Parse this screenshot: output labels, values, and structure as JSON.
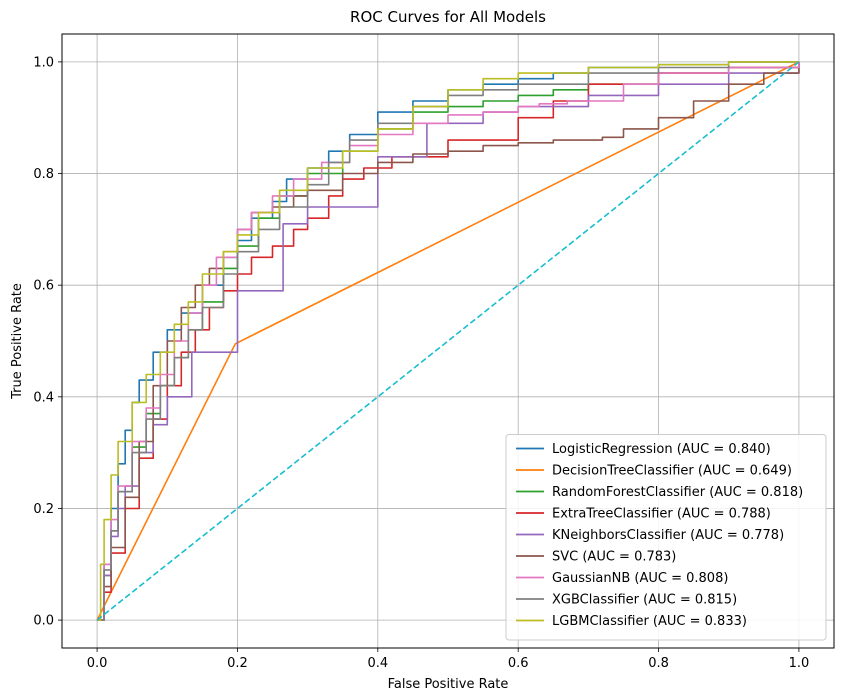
{
  "chart_data": {
    "type": "line",
    "title": "ROC Curves for All Models",
    "xlabel": "False Positive Rate",
    "ylabel": "True Positive Rate",
    "xlim": [
      -0.05,
      1.05
    ],
    "ylim": [
      -0.05,
      1.05
    ],
    "xticks": [
      "0.0",
      "0.2",
      "0.4",
      "0.6",
      "0.8",
      "1.0"
    ],
    "yticks": [
      "0.0",
      "0.2",
      "0.4",
      "0.6",
      "0.8",
      "1.0"
    ],
    "grid": true,
    "legend_position": "lower-right",
    "series": [
      {
        "name": "LogisticRegression (AUC = 0.840)",
        "color": "#1f77b4",
        "style": "solid",
        "x": [
          0,
          0.01,
          0.02,
          0.03,
          0.04,
          0.05,
          0.06,
          0.08,
          0.1,
          0.12,
          0.15,
          0.18,
          0.2,
          0.22,
          0.25,
          0.27,
          0.3,
          0.33,
          0.36,
          0.4,
          0.45,
          0.5,
          0.55,
          0.6,
          0.65,
          0.7,
          0.8,
          0.9,
          1.0
        ],
        "y": [
          0,
          0.1,
          0.2,
          0.28,
          0.34,
          0.39,
          0.43,
          0.48,
          0.52,
          0.55,
          0.6,
          0.65,
          0.68,
          0.72,
          0.75,
          0.79,
          0.81,
          0.84,
          0.87,
          0.91,
          0.93,
          0.95,
          0.96,
          0.97,
          0.98,
          0.99,
          0.995,
          1.0,
          1.0
        ]
      },
      {
        "name": "DecisionTreeClassifier (AUC = 0.649)",
        "color": "#ff7f0e",
        "style": "solid",
        "x": [
          0,
          0.197,
          1.0
        ],
        "y": [
          0,
          0.495,
          1.0
        ]
      },
      {
        "name": "RandomForestClassifier (AUC = 0.818)",
        "color": "#2ca02c",
        "style": "solid",
        "x": [
          0,
          0.01,
          0.02,
          0.03,
          0.05,
          0.07,
          0.09,
          0.11,
          0.13,
          0.15,
          0.18,
          0.2,
          0.23,
          0.26,
          0.3,
          0.35,
          0.4,
          0.45,
          0.5,
          0.55,
          0.6,
          0.65,
          0.7,
          0.8,
          0.9,
          1.0
        ],
        "y": [
          0,
          0.08,
          0.16,
          0.23,
          0.31,
          0.37,
          0.42,
          0.47,
          0.52,
          0.57,
          0.63,
          0.67,
          0.72,
          0.76,
          0.8,
          0.84,
          0.88,
          0.91,
          0.92,
          0.93,
          0.94,
          0.95,
          0.96,
          0.98,
          0.99,
          1.0
        ]
      },
      {
        "name": "ExtraTreeClassifier (AUC = 0.788)",
        "color": "#d62728",
        "style": "solid",
        "x": [
          0,
          0.01,
          0.02,
          0.04,
          0.06,
          0.08,
          0.1,
          0.12,
          0.14,
          0.16,
          0.18,
          0.2,
          0.22,
          0.25,
          0.28,
          0.3,
          0.33,
          0.35,
          0.38,
          0.42,
          0.5,
          0.6,
          0.65,
          0.7,
          0.8,
          0.9,
          1.0
        ],
        "y": [
          0,
          0.05,
          0.12,
          0.2,
          0.29,
          0.36,
          0.42,
          0.48,
          0.52,
          0.56,
          0.59,
          0.62,
          0.65,
          0.67,
          0.7,
          0.72,
          0.76,
          0.79,
          0.81,
          0.83,
          0.86,
          0.9,
          0.93,
          0.96,
          0.98,
          0.99,
          1.0
        ]
      },
      {
        "name": "KNeighborsClassifier (AUC = 0.778)",
        "color": "#9467bd",
        "style": "solid",
        "x": [
          0,
          0.01,
          0.02,
          0.03,
          0.04,
          0.06,
          0.08,
          0.1,
          0.135,
          0.2,
          0.265,
          0.3,
          0.4,
          0.47,
          0.55,
          0.6,
          0.7,
          0.8,
          0.9,
          1.0
        ],
        "y": [
          0,
          0.08,
          0.15,
          0.2,
          0.24,
          0.3,
          0.35,
          0.4,
          0.48,
          0.59,
          0.71,
          0.74,
          0.83,
          0.89,
          0.91,
          0.92,
          0.94,
          0.96,
          0.98,
          1.0
        ]
      },
      {
        "name": "SVC (AUC = 0.783)",
        "color": "#8c564b",
        "style": "solid",
        "x": [
          0,
          0.01,
          0.02,
          0.04,
          0.06,
          0.08,
          0.1,
          0.12,
          0.14,
          0.16,
          0.18,
          0.2,
          0.22,
          0.25,
          0.28,
          0.3,
          0.35,
          0.4,
          0.45,
          0.5,
          0.55,
          0.6,
          0.65,
          0.72,
          0.75,
          0.8,
          0.85,
          0.9,
          0.95,
          1.0
        ],
        "y": [
          0,
          0.06,
          0.13,
          0.22,
          0.32,
          0.42,
          0.5,
          0.56,
          0.6,
          0.63,
          0.66,
          0.7,
          0.73,
          0.74,
          0.76,
          0.77,
          0.8,
          0.82,
          0.835,
          0.84,
          0.85,
          0.855,
          0.86,
          0.865,
          0.88,
          0.9,
          0.93,
          0.96,
          0.98,
          1.0
        ]
      },
      {
        "name": "GaussianNB (AUC = 0.808)",
        "color": "#e377c2",
        "style": "solid",
        "x": [
          0,
          0.01,
          0.02,
          0.03,
          0.05,
          0.07,
          0.09,
          0.11,
          0.13,
          0.15,
          0.17,
          0.2,
          0.22,
          0.25,
          0.28,
          0.32,
          0.36,
          0.4,
          0.45,
          0.5,
          0.55,
          0.6,
          0.63,
          0.67,
          0.74,
          0.75,
          0.8,
          0.9,
          1.0
        ],
        "y": [
          0,
          0.1,
          0.18,
          0.24,
          0.32,
          0.38,
          0.44,
          0.5,
          0.55,
          0.6,
          0.65,
          0.7,
          0.73,
          0.76,
          0.79,
          0.82,
          0.85,
          0.87,
          0.89,
          0.905,
          0.91,
          0.92,
          0.925,
          0.93,
          0.93,
          0.96,
          0.98,
          0.99,
          1.0
        ]
      },
      {
        "name": "XGBClassifier (AUC = 0.815)",
        "color": "#7f7f7f",
        "style": "solid",
        "x": [
          0,
          0.01,
          0.02,
          0.03,
          0.05,
          0.07,
          0.09,
          0.11,
          0.13,
          0.15,
          0.18,
          0.2,
          0.23,
          0.26,
          0.3,
          0.33,
          0.36,
          0.4,
          0.45,
          0.5,
          0.55,
          0.6,
          0.7,
          0.8,
          0.9,
          1.0
        ],
        "y": [
          0,
          0.09,
          0.16,
          0.23,
          0.3,
          0.36,
          0.42,
          0.47,
          0.52,
          0.56,
          0.62,
          0.66,
          0.7,
          0.74,
          0.78,
          0.82,
          0.86,
          0.89,
          0.92,
          0.94,
          0.95,
          0.96,
          0.98,
          0.99,
          1.0,
          1.0
        ]
      },
      {
        "name": "LGBMClassifier (AUC = 0.833)",
        "color": "#bcbd22",
        "style": "solid",
        "x": [
          0,
          0.005,
          0.01,
          0.02,
          0.03,
          0.05,
          0.07,
          0.09,
          0.11,
          0.13,
          0.15,
          0.18,
          0.2,
          0.23,
          0.26,
          0.3,
          0.35,
          0.4,
          0.45,
          0.5,
          0.55,
          0.6,
          0.7,
          0.8,
          0.9,
          1.0
        ],
        "y": [
          0,
          0.1,
          0.18,
          0.26,
          0.32,
          0.39,
          0.44,
          0.48,
          0.53,
          0.57,
          0.62,
          0.66,
          0.69,
          0.73,
          0.77,
          0.81,
          0.84,
          0.88,
          0.92,
          0.95,
          0.97,
          0.98,
          0.99,
          0.995,
          1.0,
          1.0
        ]
      },
      {
        "name": "",
        "color": "#17becf",
        "style": "dashed",
        "x": [
          0,
          1
        ],
        "y": [
          0,
          1
        ]
      }
    ]
  }
}
